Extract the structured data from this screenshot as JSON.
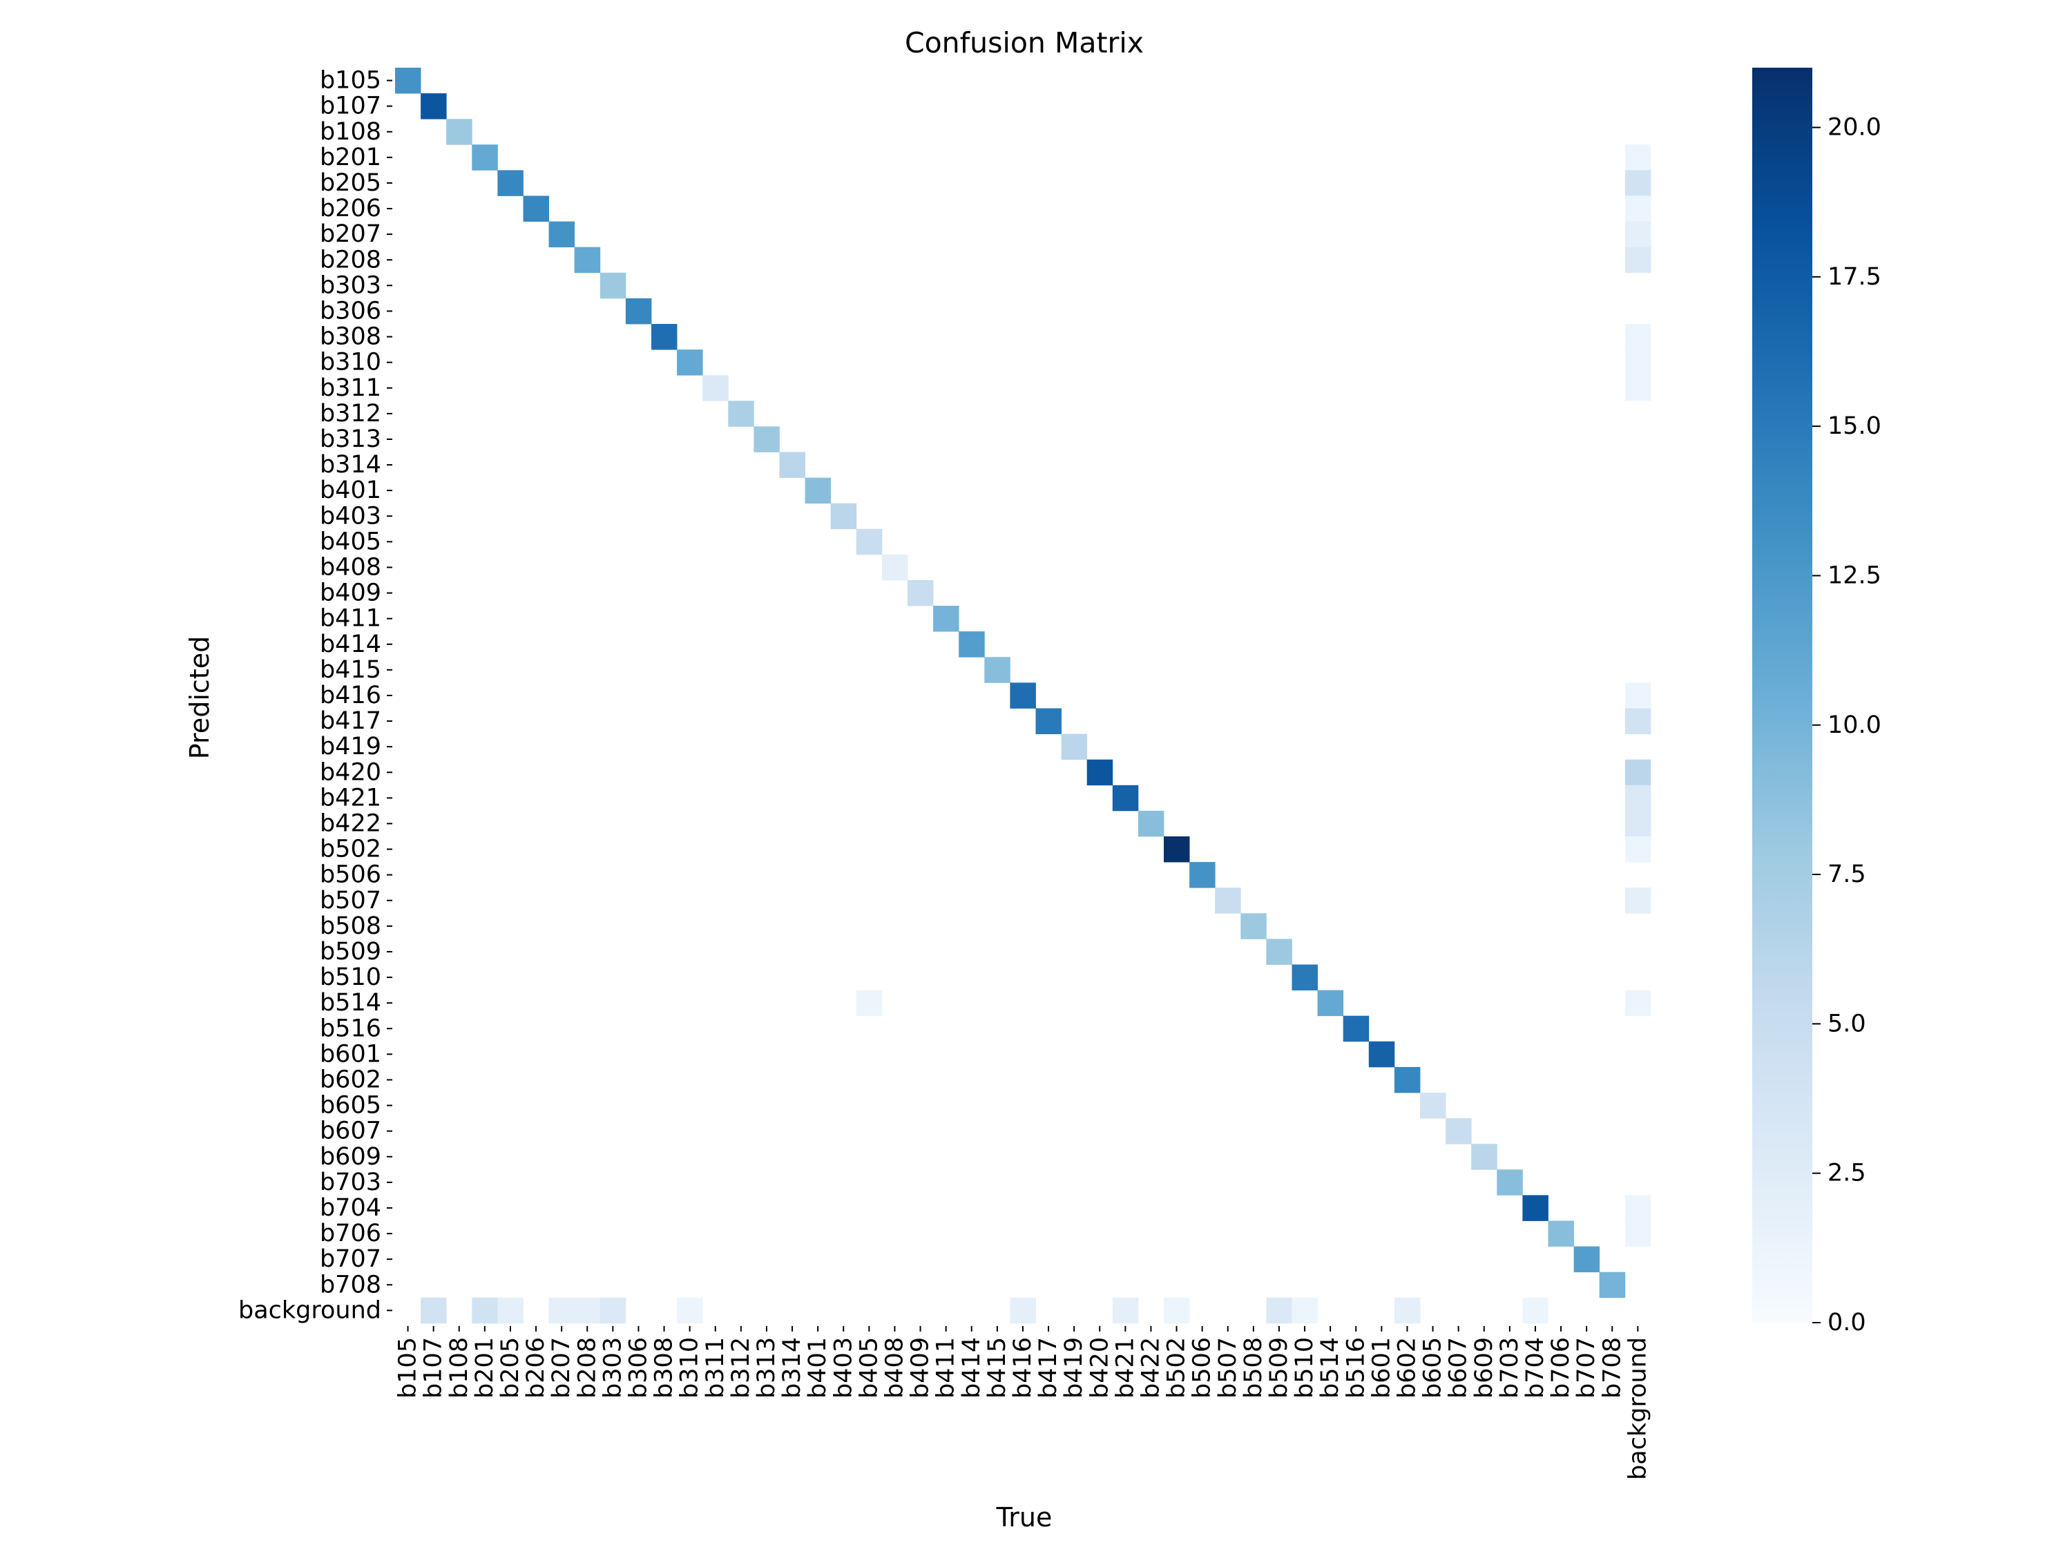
{
  "chart_data": {
    "type": "heatmap",
    "title": "Confusion Matrix",
    "xlabel": "True",
    "ylabel": "Predicted",
    "labels": [
      "b105",
      "b107",
      "b108",
      "b201",
      "b205",
      "b206",
      "b207",
      "b208",
      "b303",
      "b306",
      "b308",
      "b310",
      "b311",
      "b312",
      "b313",
      "b314",
      "b401",
      "b403",
      "b405",
      "b408",
      "b409",
      "b411",
      "b414",
      "b415",
      "b416",
      "b417",
      "b419",
      "b420",
      "b421",
      "b422",
      "b502",
      "b506",
      "b507",
      "b508",
      "b509",
      "b510",
      "b514",
      "b516",
      "b601",
      "b602",
      "b605",
      "b607",
      "b609",
      "b703",
      "b704",
      "b706",
      "b707",
      "b708",
      "background"
    ],
    "diagonal": [
      13,
      18,
      8,
      11,
      14,
      14,
      13,
      11,
      8,
      14,
      16,
      11,
      3,
      7,
      8,
      6,
      9,
      6,
      5,
      2,
      5,
      10,
      12,
      9,
      16,
      15,
      6,
      18,
      17,
      9,
      21,
      13,
      5,
      8,
      8,
      15,
      11,
      16,
      17,
      14,
      4,
      5,
      6,
      9,
      18,
      9,
      12,
      10,
      0
    ],
    "background_column": [
      {
        "row": "b201",
        "value": 1
      },
      {
        "row": "b205",
        "value": 4
      },
      {
        "row": "b206",
        "value": 1
      },
      {
        "row": "b207",
        "value": 2
      },
      {
        "row": "b208",
        "value": 3
      },
      {
        "row": "b308",
        "value": 1
      },
      {
        "row": "b310",
        "value": 1
      },
      {
        "row": "b311",
        "value": 1
      },
      {
        "row": "b416",
        "value": 1
      },
      {
        "row": "b417",
        "value": 4
      },
      {
        "row": "b420",
        "value": 6
      },
      {
        "row": "b421",
        "value": 3
      },
      {
        "row": "b422",
        "value": 3
      },
      {
        "row": "b502",
        "value": 1
      },
      {
        "row": "b507",
        "value": 2
      },
      {
        "row": "b514",
        "value": 1
      },
      {
        "row": "b704",
        "value": 1
      },
      {
        "row": "b706",
        "value": 1
      }
    ],
    "background_row": [
      {
        "col": "b107",
        "value": 4
      },
      {
        "col": "b201",
        "value": 4
      },
      {
        "col": "b205",
        "value": 2
      },
      {
        "col": "b207",
        "value": 2
      },
      {
        "col": "b208",
        "value": 2
      },
      {
        "col": "b303",
        "value": 3
      },
      {
        "col": "b310",
        "value": 1
      },
      {
        "col": "b416",
        "value": 2
      },
      {
        "col": "b421",
        "value": 2
      },
      {
        "col": "b502",
        "value": 1
      },
      {
        "col": "b509",
        "value": 3
      },
      {
        "col": "b510",
        "value": 1
      },
      {
        "col": "b602",
        "value": 2
      },
      {
        "col": "b704",
        "value": 1
      }
    ],
    "other_cells": [
      {
        "row": "b514",
        "col": "b405",
        "value": 1
      }
    ],
    "colorbar": {
      "vmin": 0,
      "vmax": 21,
      "ticks": [
        "0.0",
        "2.5",
        "5.0",
        "7.5",
        "10.0",
        "12.5",
        "15.0",
        "17.5",
        "20.0"
      ],
      "colormap": "Blues",
      "color_low": "#f7fbff",
      "color_high": "#08306b"
    },
    "grid": false
  }
}
